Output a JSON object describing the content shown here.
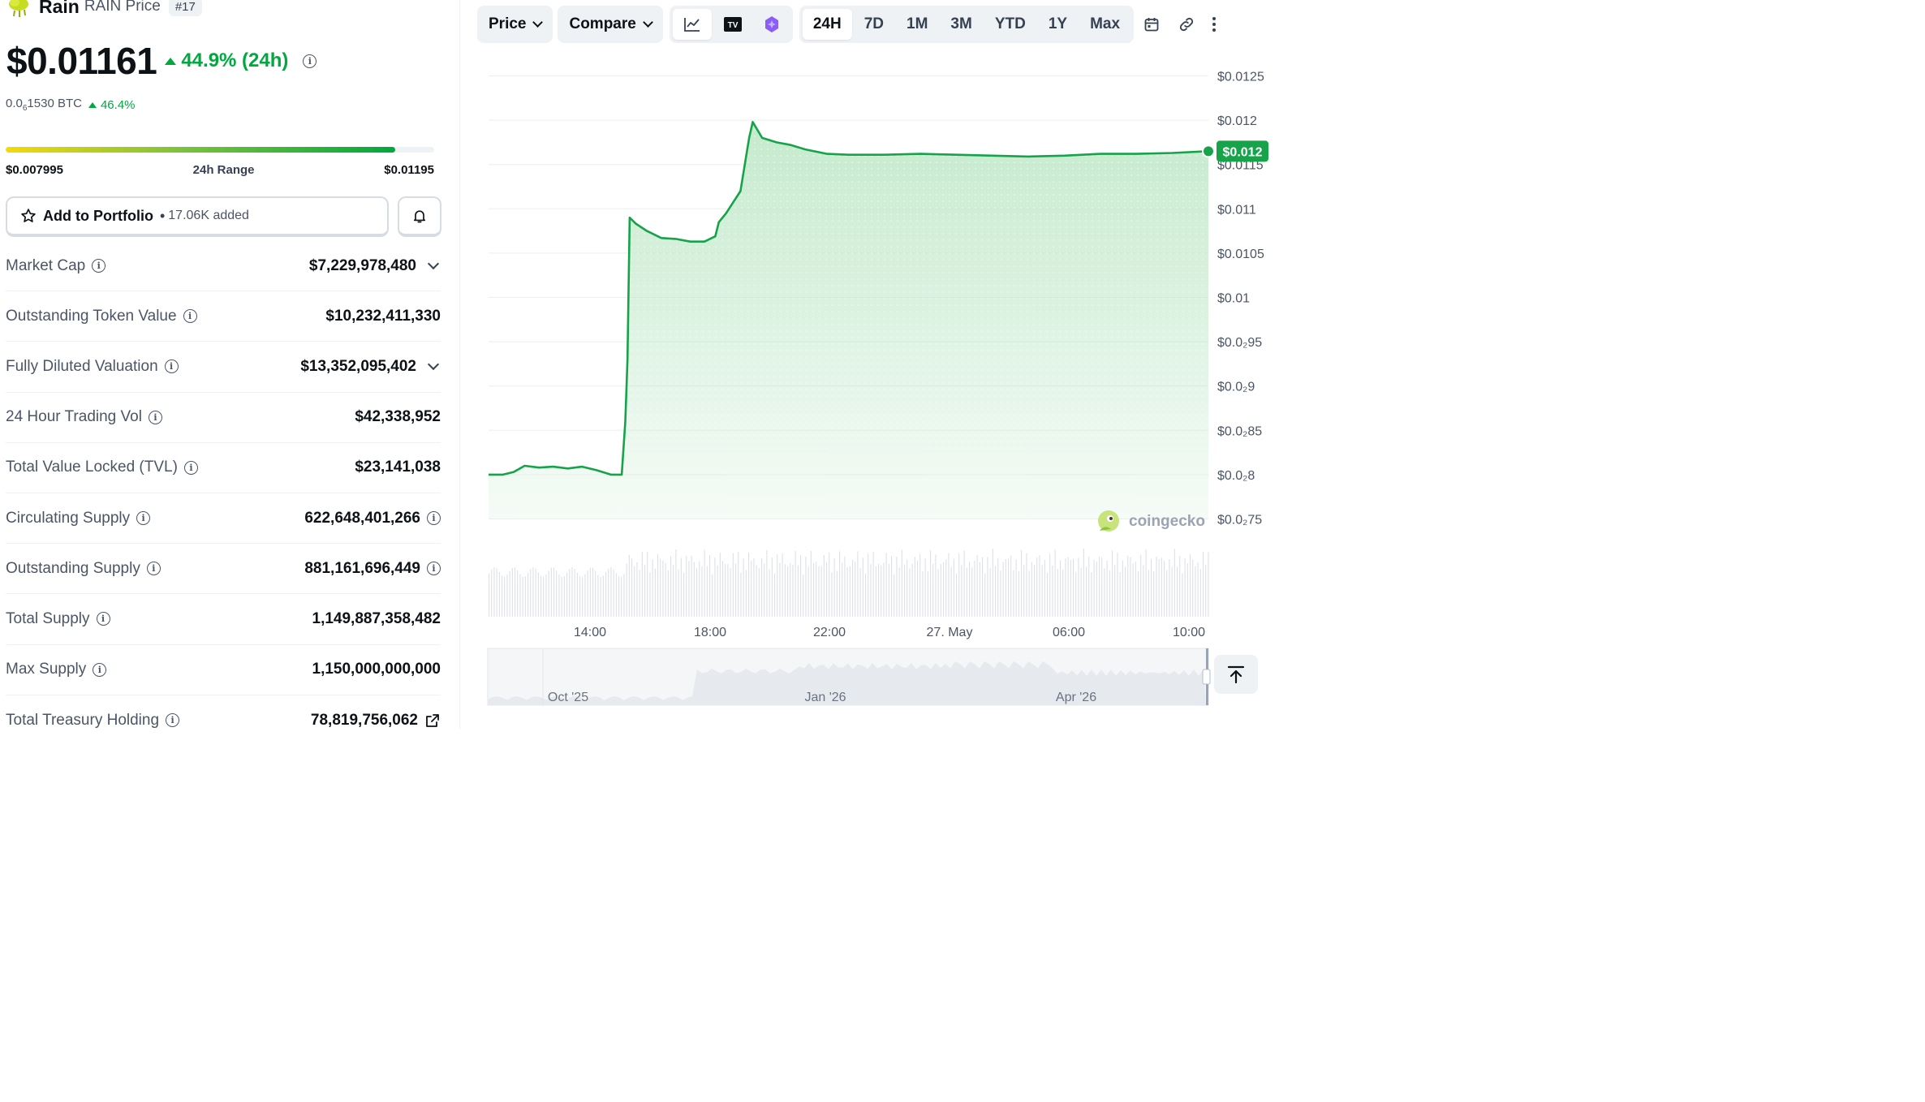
{
  "coin": {
    "name": "Rain",
    "symbol": "RAIN Price",
    "rank": "#17",
    "price": "$0.01161",
    "change_24h": "44.9% (24h)",
    "btc_price_prefix": "0.0",
    "btc_price_sub": "6",
    "btc_price_rest": "1530 BTC",
    "btc_change": "46.4%"
  },
  "range": {
    "low": "$0.007995",
    "label": "24h Range",
    "high": "$0.01195",
    "fill_fraction": 0.91
  },
  "portfolio": {
    "label": "Add to Portfolio",
    "separator": "•",
    "added": "17.06K added"
  },
  "stats": [
    {
      "label": "Market Cap",
      "value": "$7,229,978,480",
      "suffix": "chevron"
    },
    {
      "label": "Outstanding Token Value",
      "value": "$10,232,411,330",
      "suffix": ""
    },
    {
      "label": "Fully Diluted Valuation",
      "value": "$13,352,095,402",
      "suffix": "chevron"
    },
    {
      "label": "24 Hour Trading Vol",
      "value": "$42,338,952",
      "suffix": ""
    },
    {
      "label": "Total Value Locked (TVL)",
      "value": "$23,141,038",
      "suffix": ""
    },
    {
      "label": "Circulating Supply",
      "value": "622,648,401,266",
      "suffix": "info"
    },
    {
      "label": "Outstanding Supply",
      "value": "881,161,696,449",
      "suffix": "info"
    },
    {
      "label": "Total Supply",
      "value": "1,149,887,358,482",
      "suffix": ""
    },
    {
      "label": "Max Supply",
      "value": "1,150,000,000,000",
      "suffix": ""
    },
    {
      "label": "Total Treasury Holding",
      "value": "78,819,756,062",
      "suffix": "external-link"
    }
  ],
  "toolbar": {
    "price_label": "Price",
    "compare_label": "Compare",
    "timeframes": [
      "24H",
      "7D",
      "1M",
      "3M",
      "YTD",
      "1Y",
      "Max"
    ],
    "active_timeframe": "24H",
    "tradingview_label": "TV"
  },
  "chart_data": {
    "type": "area",
    "y_ticks": [
      "$0.0125",
      "$0.012",
      "$0.0115",
      "$0.011",
      "$0.0105",
      "$0.01",
      "$0.0₂95",
      "$0.0₂9",
      "$0.0₂85",
      "$0.0₂8",
      "$0.0₂75"
    ],
    "ylim": [
      0.0075,
      0.0125
    ],
    "x_ticks": [
      "14:00",
      "18:00",
      "22:00",
      "27. May",
      "06:00",
      "10:00"
    ],
    "current_price_label": "$0.012",
    "watermark": "coingecko",
    "navigator_ticks": [
      "Oct '25",
      "Jan '26",
      "Apr '26"
    ],
    "line_color": "#16a34a",
    "fill_color": "#bfe8c8",
    "points": [
      [
        0.0,
        0.008
      ],
      [
        0.02,
        0.008
      ],
      [
        0.035,
        0.00803
      ],
      [
        0.05,
        0.0081
      ],
      [
        0.07,
        0.00808
      ],
      [
        0.09,
        0.00809
      ],
      [
        0.11,
        0.00807
      ],
      [
        0.13,
        0.00809
      ],
      [
        0.15,
        0.00805
      ],
      [
        0.17,
        0.008
      ],
      [
        0.185,
        0.008
      ],
      [
        0.19,
        0.0086
      ],
      [
        0.193,
        0.0093
      ],
      [
        0.196,
        0.0109
      ],
      [
        0.205,
        0.01083
      ],
      [
        0.22,
        0.01075
      ],
      [
        0.24,
        0.01067
      ],
      [
        0.26,
        0.01066
      ],
      [
        0.28,
        0.01063
      ],
      [
        0.3,
        0.01063
      ],
      [
        0.315,
        0.01069
      ],
      [
        0.32,
        0.01085
      ],
      [
        0.33,
        0.01095
      ],
      [
        0.35,
        0.0112
      ],
      [
        0.362,
        0.0118
      ],
      [
        0.367,
        0.01198
      ],
      [
        0.38,
        0.0118
      ],
      [
        0.4,
        0.01175
      ],
      [
        0.42,
        0.01172
      ],
      [
        0.44,
        0.01167
      ],
      [
        0.47,
        0.01162
      ],
      [
        0.5,
        0.01161
      ],
      [
        0.55,
        0.01161
      ],
      [
        0.6,
        0.01162
      ],
      [
        0.65,
        0.01161
      ],
      [
        0.7,
        0.0116
      ],
      [
        0.75,
        0.01159
      ],
      [
        0.8,
        0.0116
      ],
      [
        0.85,
        0.01162
      ],
      [
        0.9,
        0.01162
      ],
      [
        0.95,
        0.01163
      ],
      [
        1.0,
        0.01165
      ]
    ]
  }
}
